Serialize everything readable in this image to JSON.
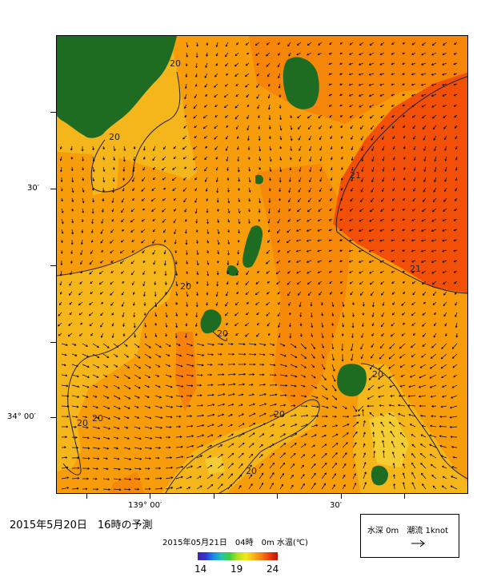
{
  "map": {
    "lat_labels": [
      "30′",
      "34° 00′"
    ],
    "lon_labels": [
      "139° 00′",
      "30′"
    ],
    "contour_label": "20",
    "contour_label_21": "21",
    "colors": {
      "land": "#1e6b22",
      "sea_base": "#f79d0c",
      "sea_warm": "#f56c0a",
      "sea_warmest": "#f24a08",
      "sea_cool": "#f5b61c",
      "sea_coolest": "#f4d33a",
      "contour": "#222222",
      "arrow": "#000000"
    }
  },
  "forecast_title": "2015年5月20日　16時の予測",
  "colorbar": {
    "caption": "2015年05月21日　04時　0m 水温(℃)",
    "min_label": "14",
    "mid_label": "19",
    "max_label": "24"
  },
  "legend": {
    "label": "水深 0m　潮流 1knot"
  }
}
